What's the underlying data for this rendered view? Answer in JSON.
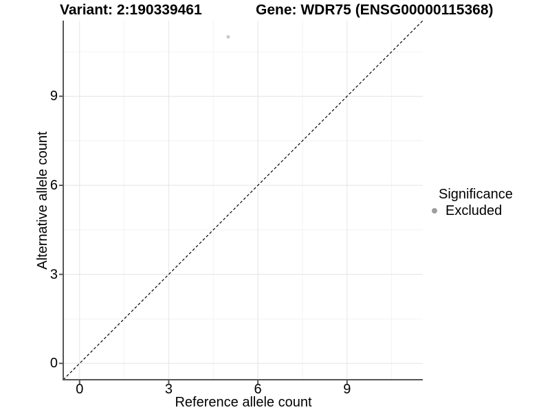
{
  "chart_data": {
    "type": "scatter",
    "title_left": "Variant: 2:190339461",
    "title_right": "Gene: WDR75 (ENSG00000115368)",
    "xlabel": "Reference allele count",
    "ylabel": "Alternative allele count",
    "xlim": [
      -0.55,
      11.55
    ],
    "ylim": [
      -0.55,
      11.55
    ],
    "x_ticks": [
      0,
      3,
      6,
      9
    ],
    "y_ticks": [
      0,
      3,
      6,
      9
    ],
    "x_minor_ticks": [
      1.5,
      4.5,
      7.5,
      10.5
    ],
    "y_minor_ticks": [
      1.5,
      4.5,
      7.5,
      10.5
    ],
    "grid": "major and minor gridlines on, white panel background",
    "points": [
      {
        "x": 5,
        "y": 11,
        "significance": "Excluded"
      }
    ],
    "reference_line": {
      "slope": 1,
      "intercept": 0,
      "style": "dashed",
      "color": "#000000"
    },
    "legend": {
      "title": "Significance",
      "position": "right",
      "entries": [
        {
          "label": "Excluded",
          "marker": "circle",
          "color": "#9e9e9e"
        }
      ]
    }
  },
  "colors": {
    "background": "#ffffff",
    "axis_line": "#555555",
    "grid_major": "#e4e4e4",
    "grid_minor": "#f2f2f2",
    "text": "#000000",
    "point_fill": "#c8c8c8",
    "legend_marker": "#9e9e9e"
  }
}
